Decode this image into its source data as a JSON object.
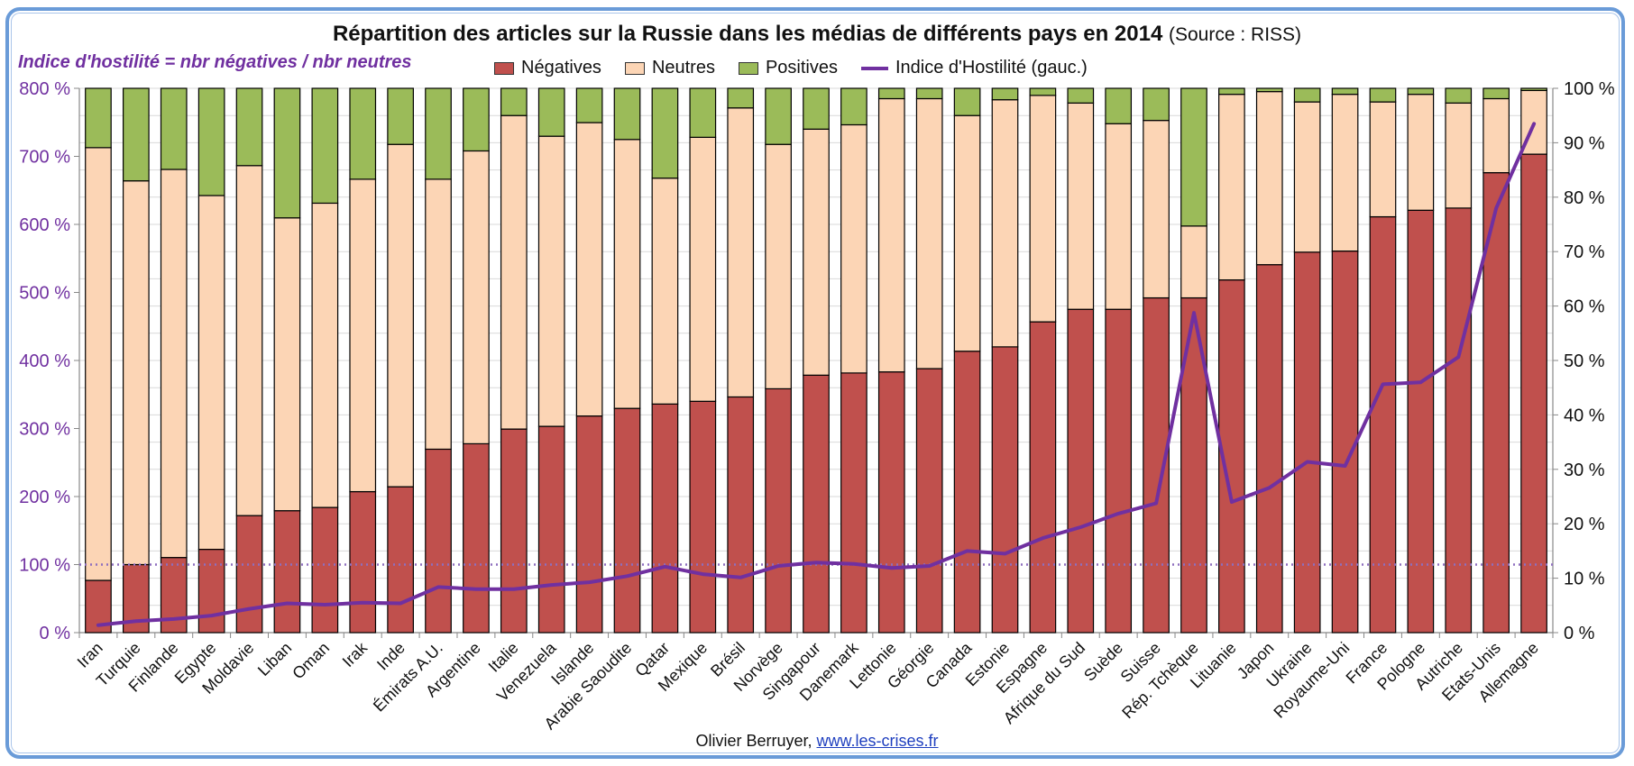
{
  "title": {
    "main": "Répartition des articles sur la Russie dans les médias de différents pays en 2014",
    "source": "(Source : RISS)"
  },
  "formula": "Indice d'hostilité = nbr négatives / nbr neutres",
  "legend": {
    "negatives": "Négatives",
    "neutres": "Neutres",
    "positives": "Positives",
    "index": "Indice d'Hostilité (gauc.)"
  },
  "footer": {
    "author": "Olivier Berruyer, ",
    "link": "www.les-crises.fr"
  },
  "colors": {
    "negatives": "#c0504d",
    "neutres": "#fcd5b5",
    "positives": "#9bbb59",
    "index": "#7030a0",
    "axis_left_text": "#7030a0",
    "axis_right_text": "#111111"
  },
  "chart_data": {
    "type": "bar",
    "stacked": true,
    "title": "Répartition des articles sur la Russie dans les médias de différents pays en 2014 (Source : RISS)",
    "xlabel": "",
    "ylabel_left": "Indice d'hostilité",
    "ylabel_right": "Répartition des articles",
    "left_ylim": [
      0,
      800
    ],
    "right_ylim": [
      0,
      100
    ],
    "left_ticks": [
      "0 %",
      "100 %",
      "200 %",
      "300 %",
      "400 %",
      "500 %",
      "600 %",
      "700 %",
      "800 %"
    ],
    "right_ticks": [
      "0 %",
      "10 %",
      "20 %",
      "30 %",
      "40 %",
      "50 %",
      "60 %",
      "70 %",
      "80 %",
      "90 %",
      "100 %"
    ],
    "reference_line_left": 100,
    "grid": true,
    "legend_position": "top",
    "categories": [
      "Iran",
      "Turquie",
      "Finlande",
      "Egypte",
      "Moldavie",
      "Liban",
      "Oman",
      "Irak",
      "Inde",
      "Émirats A.U.",
      "Argentine",
      "Italie",
      "Venezuela",
      "Islande",
      "Arabie Saoudite",
      "Qatar",
      "Mexique",
      "Brésil",
      "Norvège",
      "Singapour",
      "Danemark",
      "Lettonie",
      "Géorgie",
      "Canada",
      "Estonie",
      "Espagne",
      "Afrique du Sud",
      "Suède",
      "Suisse",
      "Rép. Tchèque",
      "Lituanie",
      "Japon",
      "Ukraine",
      "Royaume-Uni",
      "France",
      "Pologne",
      "Autriche",
      "Etats-Unis",
      "Allemagne"
    ],
    "series": [
      {
        "name": "Négatives",
        "axis": "right",
        "kind": "bar",
        "values": [
          9.6,
          12.5,
          13.8,
          15.3,
          21.5,
          22.4,
          23.0,
          25.9,
          26.8,
          33.7,
          34.7,
          37.4,
          37.9,
          39.8,
          41.2,
          42.0,
          42.5,
          43.3,
          44.8,
          47.3,
          47.7,
          47.9,
          48.5,
          51.7,
          52.5,
          57.1,
          59.4,
          59.4,
          61.5,
          61.5,
          64.8,
          67.6,
          69.9,
          70.1,
          76.4,
          77.6,
          78.0,
          84.5,
          87.9
        ]
      },
      {
        "name": "Neutres",
        "axis": "right",
        "kind": "bar",
        "values": [
          79.5,
          70.5,
          71.3,
          65.0,
          64.3,
          53.8,
          55.9,
          57.4,
          62.9,
          49.6,
          53.8,
          57.6,
          53.3,
          53.9,
          49.4,
          41.5,
          48.5,
          53.1,
          44.9,
          45.2,
          45.6,
          50.2,
          49.6,
          43.3,
          45.4,
          41.6,
          37.9,
          34.1,
          32.6,
          13.2,
          34.1,
          31.8,
          27.6,
          28.8,
          21.1,
          21.3,
          19.3,
          13.6,
          11.7
        ]
      },
      {
        "name": "Positives",
        "axis": "right",
        "kind": "bar",
        "values": [
          10.9,
          17.0,
          14.9,
          19.7,
          14.2,
          23.8,
          21.1,
          16.7,
          10.3,
          16.7,
          11.5,
          5.0,
          8.8,
          6.3,
          9.4,
          16.5,
          9.0,
          3.6,
          10.3,
          7.5,
          6.7,
          1.9,
          1.9,
          5.0,
          2.1,
          1.3,
          2.7,
          6.5,
          5.9,
          25.3,
          1.1,
          0.6,
          2.5,
          1.1,
          2.5,
          1.1,
          2.7,
          1.9,
          0.4
        ]
      },
      {
        "name": "Indice d'Hostilité (gauc.)",
        "axis": "left",
        "kind": "line",
        "values": [
          11,
          17,
          20,
          25,
          35,
          43,
          41,
          44,
          43,
          67,
          64,
          64,
          70,
          74,
          83,
          97,
          86,
          81,
          98,
          103,
          101,
          95,
          98,
          120,
          116,
          139,
          155,
          175,
          190,
          470,
          192,
          213,
          251,
          245,
          365,
          368,
          405,
          624,
          748
        ]
      }
    ]
  }
}
